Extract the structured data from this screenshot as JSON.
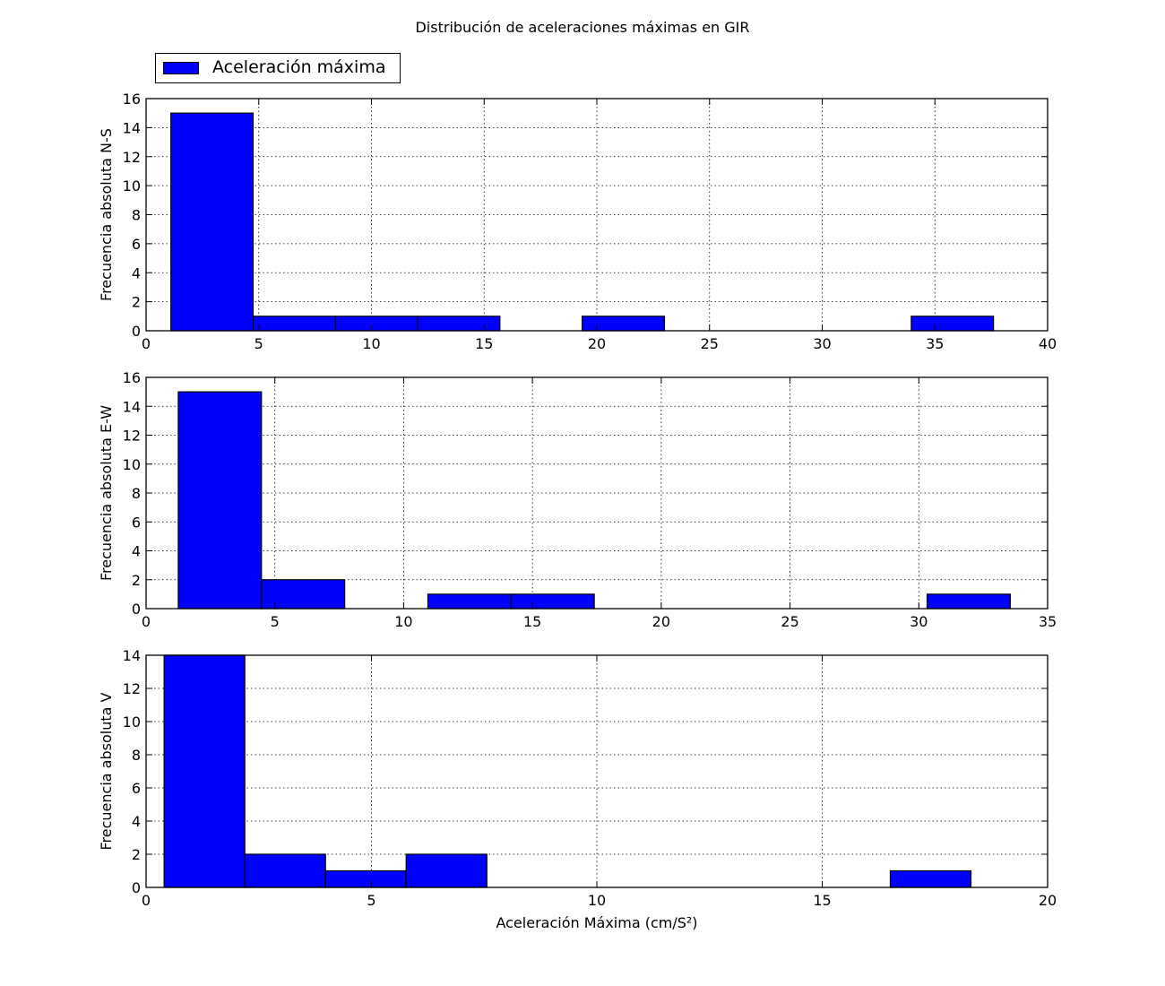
{
  "figure_title": "Distribución de aceleraciones máximas en GIR",
  "legend": {
    "label": "Aceleración máxima",
    "color": "#0000ff"
  },
  "colors": {
    "bar_fill": "#0000ff",
    "bar_edge": "#000000",
    "grid": "#000000",
    "axes": "#000000"
  },
  "chart_data": [
    {
      "type": "bar",
      "subtype": "histogram",
      "name": "N-S",
      "ylabel": "Frecuencia absoluta N-S",
      "xlabel": "",
      "xlim": [
        0,
        40
      ],
      "ylim": [
        0,
        16
      ],
      "xticks": [
        0,
        5,
        10,
        15,
        20,
        25,
        30,
        35,
        40
      ],
      "yticks": [
        0,
        2,
        4,
        6,
        8,
        10,
        12,
        14,
        16
      ],
      "grid": true,
      "bins": [
        {
          "x0": 1.1,
          "x1": 4.75,
          "count": 15
        },
        {
          "x0": 4.75,
          "x1": 8.4,
          "count": 1
        },
        {
          "x0": 8.4,
          "x1": 12.05,
          "count": 1
        },
        {
          "x0": 12.05,
          "x1": 15.7,
          "count": 1
        },
        {
          "x0": 15.7,
          "x1": 19.35,
          "count": 0
        },
        {
          "x0": 19.35,
          "x1": 23.0,
          "count": 1
        },
        {
          "x0": 23.0,
          "x1": 26.65,
          "count": 0
        },
        {
          "x0": 26.65,
          "x1": 30.3,
          "count": 0
        },
        {
          "x0": 30.3,
          "x1": 33.95,
          "count": 0
        },
        {
          "x0": 33.95,
          "x1": 37.6,
          "count": 1
        }
      ]
    },
    {
      "type": "bar",
      "subtype": "histogram",
      "name": "E-W",
      "ylabel": "Frecuencia absoluta E-W",
      "xlabel": "",
      "xlim": [
        0,
        35
      ],
      "ylim": [
        0,
        16
      ],
      "xticks": [
        0,
        5,
        10,
        15,
        20,
        25,
        30,
        35
      ],
      "yticks": [
        0,
        2,
        4,
        6,
        8,
        10,
        12,
        14,
        16
      ],
      "grid": true,
      "bins": [
        {
          "x0": 1.25,
          "x1": 4.48,
          "count": 15
        },
        {
          "x0": 4.48,
          "x1": 7.71,
          "count": 2
        },
        {
          "x0": 7.71,
          "x1": 10.94,
          "count": 0
        },
        {
          "x0": 10.94,
          "x1": 14.17,
          "count": 1
        },
        {
          "x0": 14.17,
          "x1": 17.4,
          "count": 1
        },
        {
          "x0": 17.4,
          "x1": 20.63,
          "count": 0
        },
        {
          "x0": 20.63,
          "x1": 23.86,
          "count": 0
        },
        {
          "x0": 23.86,
          "x1": 27.09,
          "count": 0
        },
        {
          "x0": 27.09,
          "x1": 30.32,
          "count": 0
        },
        {
          "x0": 30.32,
          "x1": 33.55,
          "count": 1
        }
      ]
    },
    {
      "type": "bar",
      "subtype": "histogram",
      "name": "V",
      "ylabel": "Frecuencia absoluta V",
      "xlabel": "Aceleración Máxima (cm/S²)",
      "xlim": [
        0,
        20
      ],
      "ylim": [
        0,
        14
      ],
      "xticks": [
        0,
        5,
        10,
        15,
        20
      ],
      "yticks": [
        0,
        2,
        4,
        6,
        8,
        10,
        12,
        14
      ],
      "grid": true,
      "bins": [
        {
          "x0": 0.4,
          "x1": 2.19,
          "count": 14
        },
        {
          "x0": 2.19,
          "x1": 3.98,
          "count": 2
        },
        {
          "x0": 3.98,
          "x1": 5.77,
          "count": 1
        },
        {
          "x0": 5.77,
          "x1": 7.56,
          "count": 2
        },
        {
          "x0": 7.56,
          "x1": 9.35,
          "count": 0
        },
        {
          "x0": 9.35,
          "x1": 11.14,
          "count": 0
        },
        {
          "x0": 11.14,
          "x1": 12.93,
          "count": 0
        },
        {
          "x0": 12.93,
          "x1": 14.72,
          "count": 0
        },
        {
          "x0": 14.72,
          "x1": 16.51,
          "count": 0
        },
        {
          "x0": 16.51,
          "x1": 18.3,
          "count": 1
        }
      ]
    }
  ]
}
